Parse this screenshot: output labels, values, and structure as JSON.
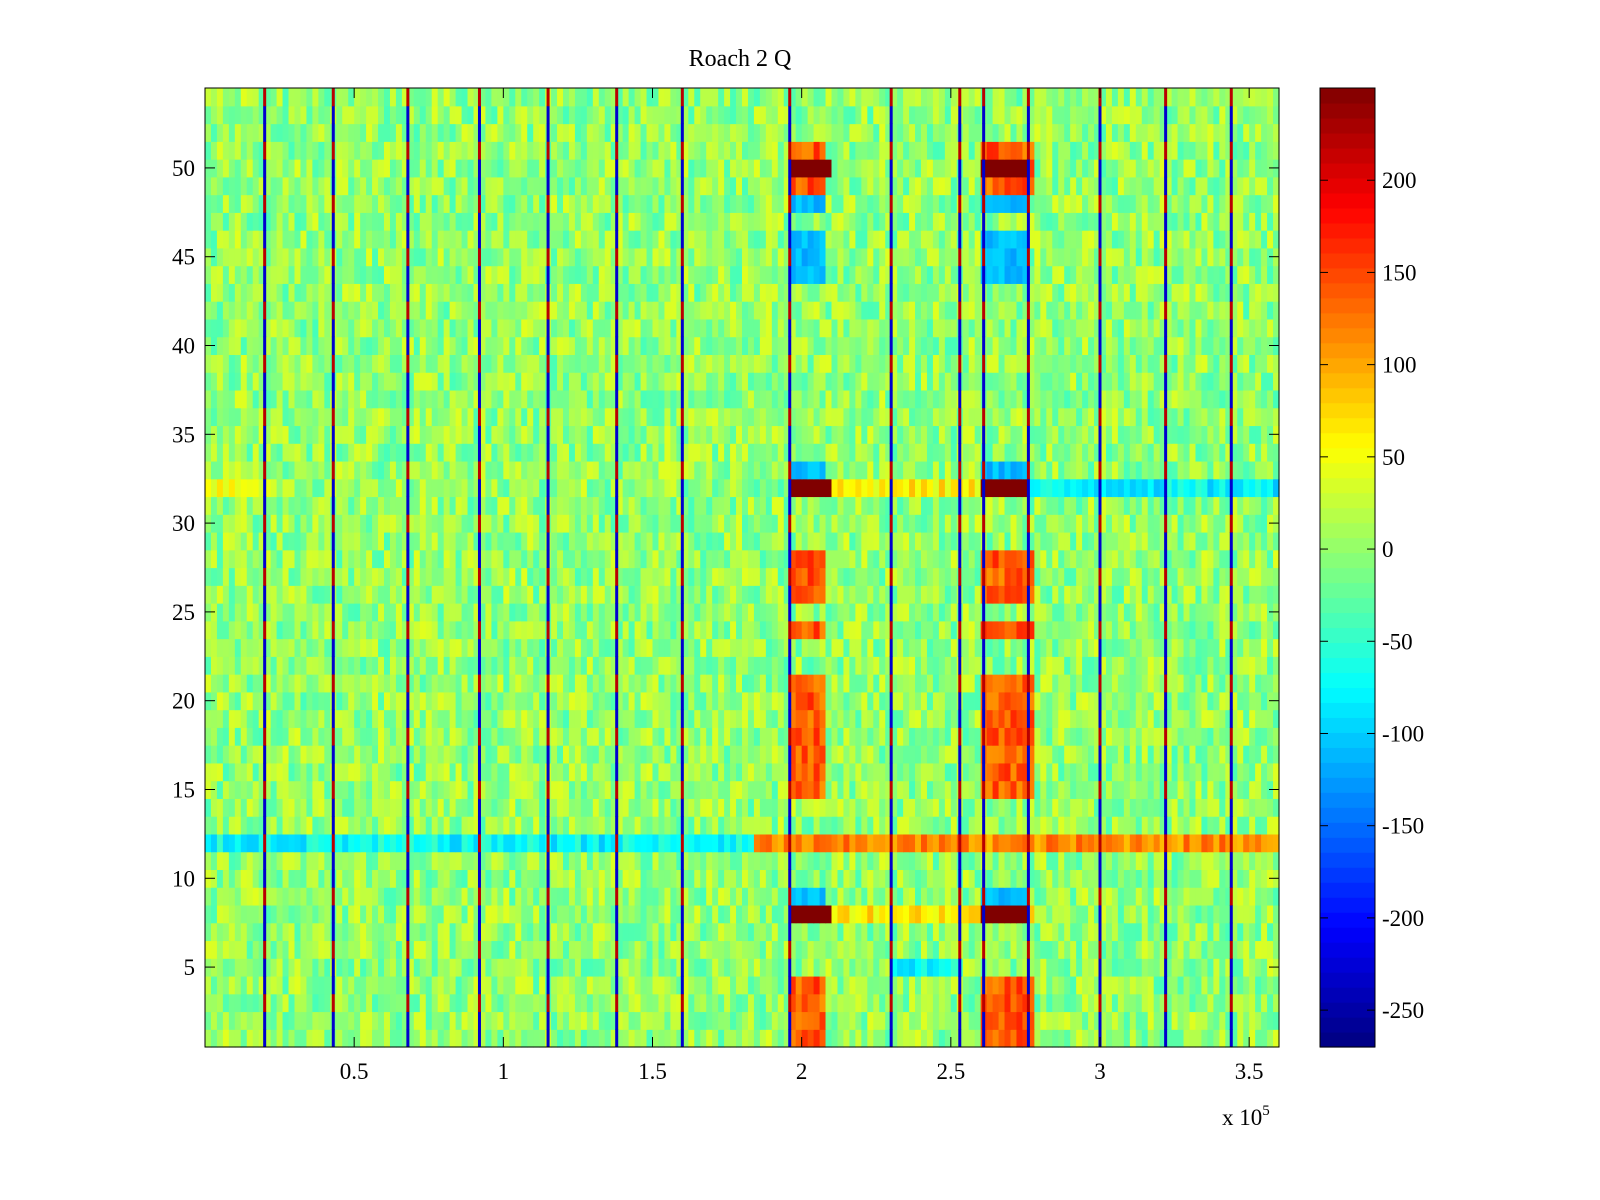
{
  "chart_data": {
    "type": "heatmap",
    "title": "Roach 2 Q",
    "xlabel": "",
    "ylabel": "",
    "x_multiplier_label": "x 10",
    "x_multiplier_exponent": "5",
    "xlim": [
      0,
      360000
    ],
    "ylim": [
      0.5,
      54.5
    ],
    "xticks": [
      0.5,
      1,
      1.5,
      2,
      2.5,
      3,
      3.5
    ],
    "xtick_labels": [
      "0.5",
      "1",
      "1.5",
      "2",
      "2.5",
      "3",
      "3.5"
    ],
    "yticks": [
      5,
      10,
      15,
      20,
      25,
      30,
      35,
      40,
      45,
      50
    ],
    "ytick_labels": [
      "5",
      "10",
      "15",
      "20",
      "25",
      "30",
      "35",
      "40",
      "45",
      "50"
    ],
    "colorbar": {
      "colormap": "jet",
      "clim": [
        -270,
        250
      ],
      "ticks": [
        200,
        150,
        100,
        50,
        0,
        -50,
        -100,
        -150,
        -200,
        -250
      ],
      "tick_labels": [
        "200",
        "150",
        "100",
        "50",
        "0",
        "-50",
        "-100",
        "-150",
        "-200",
        "-250"
      ]
    },
    "background_value_range": [
      -40,
      40
    ],
    "vertical_spike_lines_x": [
      20000,
      43000,
      68000,
      92000,
      115000,
      138000,
      160000,
      196000,
      230000,
      253000,
      261000,
      276000,
      300000,
      322000,
      344000
    ],
    "hot_column_blocks": [
      {
        "x_range": [
          196000,
          206000
        ],
        "rows": [
          1,
          2,
          3,
          4,
          15,
          16,
          17,
          18,
          19,
          20,
          21,
          24,
          26,
          27,
          28,
          49,
          50,
          51
        ],
        "value": 140
      },
      {
        "x_range": [
          261000,
          276000
        ],
        "rows": [
          1,
          2,
          3,
          4,
          15,
          16,
          17,
          18,
          19,
          20,
          21,
          24,
          26,
          27,
          28,
          49,
          50,
          51
        ],
        "value": 140
      }
    ],
    "saturated_blocks": [
      {
        "x_range": [
          196000,
          208000
        ],
        "row": 8,
        "value": 250
      },
      {
        "x_range": [
          196000,
          208000
        ],
        "row": 32,
        "value": 250
      },
      {
        "x_range": [
          196000,
          208000
        ],
        "row": 50,
        "value": 250
      },
      {
        "x_range": [
          261000,
          274000
        ],
        "row": 8,
        "value": 250
      },
      {
        "x_range": [
          261000,
          274000
        ],
        "row": 32,
        "value": 250
      },
      {
        "x_range": [
          261000,
          274000
        ],
        "row": 50,
        "value": 250
      }
    ],
    "negative_blocks": [
      {
        "x_range": [
          196000,
          206000
        ],
        "rows": [
          9,
          33,
          44,
          45,
          46,
          48
        ],
        "value": -110
      },
      {
        "x_range": [
          261000,
          274000
        ],
        "rows": [
          9,
          33,
          44,
          45,
          46,
          48
        ],
        "value": -110
      }
    ],
    "row_bands": [
      {
        "row": 12,
        "x_range": [
          0,
          185000
        ],
        "value": -75
      },
      {
        "row": 12,
        "x_range": [
          185000,
          360000
        ],
        "value": 115
      },
      {
        "row": 32,
        "x_range": [
          0,
          20000
        ],
        "value": 55
      },
      {
        "row": 32,
        "x_range": [
          208000,
          276000
        ],
        "value": 60
      },
      {
        "row": 32,
        "x_range": [
          276000,
          360000
        ],
        "value": -80
      },
      {
        "row": 8,
        "x_range": [
          208000,
          276000
        ],
        "value": 70
      },
      {
        "row": 5,
        "x_range": [
          230000,
          253000
        ],
        "value": -70
      }
    ]
  }
}
